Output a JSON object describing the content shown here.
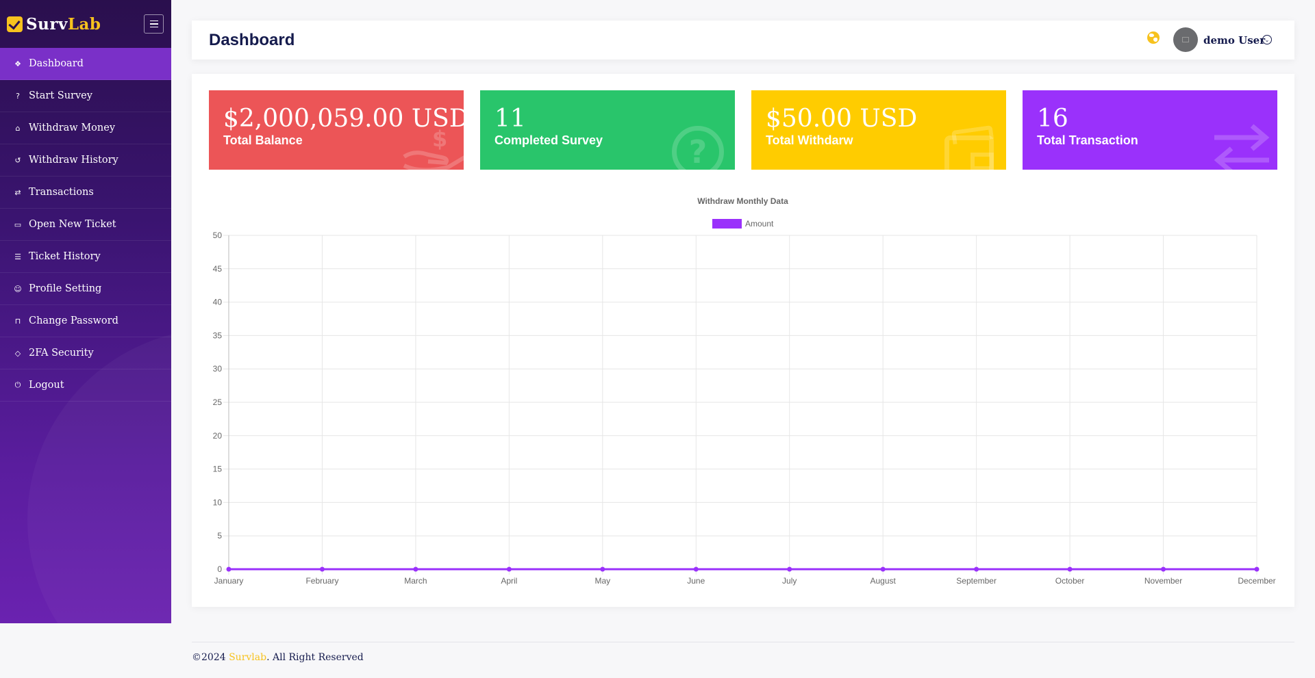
{
  "brand": {
    "name_part1": "Surv",
    "name_part2": "Lab"
  },
  "sidebar": {
    "items": [
      {
        "label": "Dashboard",
        "icon": "layers-icon",
        "active": true
      },
      {
        "label": "Start Survey",
        "icon": "question-circle-icon"
      },
      {
        "label": "Withdraw Money",
        "icon": "bank-icon"
      },
      {
        "label": "Withdraw History",
        "icon": "history-icon"
      },
      {
        "label": "Transactions",
        "icon": "transfer-icon"
      },
      {
        "label": "Open New Ticket",
        "icon": "ticket-icon"
      },
      {
        "label": "Ticket History",
        "icon": "list-icon"
      },
      {
        "label": "Profile Setting",
        "icon": "user-icon"
      },
      {
        "label": "Change Password",
        "icon": "lock-icon"
      },
      {
        "label": "2FA Security",
        "icon": "shield-icon"
      },
      {
        "label": "Logout",
        "icon": "power-icon"
      }
    ]
  },
  "header": {
    "title": "Dashboard",
    "user_name": "demo User"
  },
  "cards": [
    {
      "value": "$2,000,059.00 USD",
      "label": "Total Balance",
      "color": "#ec5557",
      "icon": "money-hand-icon"
    },
    {
      "value": "11",
      "label": "Completed Survey",
      "color": "#29c56b",
      "icon": "question-icon"
    },
    {
      "value": "$50.00 USD",
      "label": "Total Withdarw",
      "color": "#ffcc00",
      "icon": "wallet-icon"
    },
    {
      "value": "16",
      "label": "Total Transaction",
      "color": "#9a31fb",
      "icon": "exchange-icon"
    }
  ],
  "chart_data": {
    "type": "line",
    "title": "Withdraw Monthly Data",
    "categories": [
      "January",
      "February",
      "March",
      "April",
      "May",
      "June",
      "July",
      "August",
      "September",
      "October",
      "November",
      "December"
    ],
    "series": [
      {
        "name": "Amount",
        "values": [
          0,
          0,
          0,
          0,
          0,
          0,
          0,
          0,
          0,
          0,
          0,
          0
        ],
        "color": "#9a31fb"
      }
    ],
    "ylim": [
      0,
      50
    ],
    "yticks": [
      0,
      5,
      10,
      15,
      20,
      25,
      30,
      35,
      40,
      45,
      50
    ],
    "grid": true,
    "legend": "top"
  },
  "footer": {
    "year_text": "©2024 ",
    "brand": "Survlab",
    "rest": ". All Right Reserved"
  }
}
